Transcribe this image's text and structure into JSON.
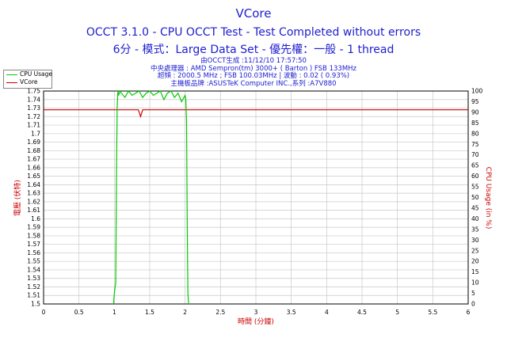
{
  "header": {
    "title": "VCore",
    "subtitle1": "OCCT 3.1.0 - CPU OCCT Test - Test Completed without errors",
    "subtitle2": "6分 - 模式：Large Data Set - 優先權：一般 - 1 thread"
  },
  "info_lines": [
    "由OCCT生成 :11/12/10 17:57:50",
    "中央處理器 : AMD Sempron(tm) 3000+ ( Barton ) FSB 133MHz",
    "超頻 : 2000.5 MHz ; FSB 100.03MHz | 波動 : 0.02 ( 0.93%)",
    "主機板品牌 :ASUSTeK Computer INC.,系列 :A7V880"
  ],
  "chart_data": {
    "type": "line",
    "xlabel": "時間 (分鐘)",
    "ylabel": "電壓 (伏特)",
    "y2label": "CPU Usage (in %)",
    "xlim": [
      0,
      6
    ],
    "ylim": [
      1.5,
      1.75
    ],
    "y2lim": [
      0,
      100
    ],
    "x_ticks": [
      "0",
      "0.5",
      "1",
      "1.5",
      "2",
      "2.5",
      "3",
      "3.5",
      "4",
      "4.5",
      "5",
      "5.5",
      "6"
    ],
    "y_ticks": [
      "1.5",
      "1.51",
      "1.52",
      "1.53",
      "1.54",
      "1.55",
      "1.56",
      "1.57",
      "1.58",
      "1.59",
      "1.6",
      "1.61",
      "1.62",
      "1.63",
      "1.64",
      "1.65",
      "1.66",
      "1.67",
      "1.68",
      "1.69",
      "1.7",
      "1.71",
      "1.72",
      "1.73",
      "1.74",
      "1.75"
    ],
    "y2_ticks": [
      "0",
      "5",
      "10",
      "15",
      "20",
      "25",
      "30",
      "35",
      "40",
      "45",
      "50",
      "55",
      "60",
      "65",
      "70",
      "75",
      "80",
      "85",
      "90",
      "95",
      "100"
    ],
    "grid": true,
    "legend": "top-left",
    "series": [
      {
        "name": "CPU Usage",
        "axis": "right",
        "color": "#00cc00",
        "x": [
          0.99,
          1.0,
          1.02,
          1.03,
          1.04,
          1.05,
          1.06,
          1.08,
          1.1,
          1.15,
          1.2,
          1.25,
          1.3,
          1.35,
          1.4,
          1.45,
          1.5,
          1.55,
          1.6,
          1.65,
          1.7,
          1.75,
          1.8,
          1.85,
          1.9,
          1.95,
          2.0,
          2.01,
          2.02,
          2.03,
          2.04,
          2.05
        ],
        "values": [
          0,
          5,
          10,
          60,
          92,
          100,
          98,
          100,
          99,
          97,
          100,
          98,
          99,
          100,
          97,
          99,
          100,
          98,
          99,
          100,
          96,
          99,
          100,
          97,
          99,
          95,
          98,
          96,
          85,
          40,
          5,
          0
        ]
      },
      {
        "name": "VCore",
        "axis": "left",
        "color": "#cc0000",
        "x": [
          0,
          1.34,
          1.37,
          1.4,
          1.43,
          6
        ],
        "values": [
          1.728,
          1.728,
          1.72,
          1.728,
          1.728,
          1.728
        ]
      }
    ]
  }
}
